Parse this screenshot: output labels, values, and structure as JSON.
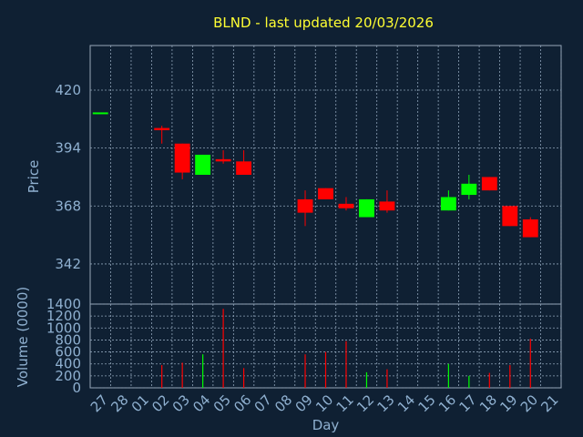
{
  "title": "BLND - last updated 20/03/2026",
  "chart_data": [
    {
      "type": "candlestick",
      "ylabel": "Price",
      "ylim": [
        324,
        440
      ],
      "yticks": [
        342,
        368,
        394,
        420
      ],
      "grid": true,
      "colors": {
        "up": "#00ff00",
        "down": "#ff0000"
      },
      "candles": [
        {
          "day": "27",
          "open": 410,
          "high": 410,
          "low": 410,
          "close": 410
        },
        {
          "day": "02",
          "open": 403,
          "high": 404,
          "low": 396,
          "close": 402
        },
        {
          "day": "03",
          "open": 396,
          "high": 396,
          "low": 380,
          "close": 383
        },
        {
          "day": "04",
          "open": 382,
          "high": 391,
          "low": 382,
          "close": 391
        },
        {
          "day": "05",
          "open": 389,
          "high": 393,
          "low": 387,
          "close": 388
        },
        {
          "day": "06",
          "open": 388,
          "high": 393,
          "low": 382,
          "close": 382
        },
        {
          "day": "09",
          "open": 371,
          "high": 375,
          "low": 359,
          "close": 365
        },
        {
          "day": "10",
          "open": 376,
          "high": 376,
          "low": 371,
          "close": 371
        },
        {
          "day": "11",
          "open": 369,
          "high": 372,
          "low": 366,
          "close": 367
        },
        {
          "day": "12",
          "open": 363,
          "high": 371,
          "low": 363,
          "close": 371
        },
        {
          "day": "13",
          "open": 370,
          "high": 375,
          "low": 365,
          "close": 366
        },
        {
          "day": "16",
          "open": 366,
          "high": 375,
          "low": 366,
          "close": 372
        },
        {
          "day": "17",
          "open": 373,
          "high": 382,
          "low": 371,
          "close": 378
        },
        {
          "day": "18",
          "open": 381,
          "high": 381,
          "low": 375,
          "close": 375
        },
        {
          "day": "19",
          "open": 368,
          "high": 368,
          "low": 359,
          "close": 359
        },
        {
          "day": "20",
          "open": 362,
          "high": 363,
          "low": 354,
          "close": 354
        }
      ]
    },
    {
      "type": "bar",
      "ylabel": "Volume (0000)",
      "xlabel": "Day",
      "ylim": [
        0,
        1400
      ],
      "yticks": [
        0,
        200,
        400,
        600,
        800,
        1000,
        1200,
        1400
      ],
      "categories": [
        "27",
        "28",
        "01",
        "02",
        "03",
        "04",
        "05",
        "06",
        "07",
        "08",
        "09",
        "10",
        "11",
        "12",
        "13",
        "14",
        "15",
        "16",
        "17",
        "18",
        "19",
        "20",
        "21"
      ],
      "volumes": [
        {
          "day": "02",
          "value": 380,
          "direction": "down"
        },
        {
          "day": "03",
          "value": 420,
          "direction": "down"
        },
        {
          "day": "04",
          "value": 560,
          "direction": "up"
        },
        {
          "day": "05",
          "value": 1320,
          "direction": "down"
        },
        {
          "day": "06",
          "value": 330,
          "direction": "down"
        },
        {
          "day": "09",
          "value": 560,
          "direction": "down"
        },
        {
          "day": "10",
          "value": 600,
          "direction": "down"
        },
        {
          "day": "11",
          "value": 780,
          "direction": "down"
        },
        {
          "day": "12",
          "value": 260,
          "direction": "up"
        },
        {
          "day": "13",
          "value": 310,
          "direction": "down"
        },
        {
          "day": "16",
          "value": 400,
          "direction": "up"
        },
        {
          "day": "17",
          "value": 200,
          "direction": "up"
        },
        {
          "day": "18",
          "value": 250,
          "direction": "down"
        },
        {
          "day": "19",
          "value": 380,
          "direction": "down"
        },
        {
          "day": "20",
          "value": 820,
          "direction": "down"
        }
      ]
    }
  ]
}
